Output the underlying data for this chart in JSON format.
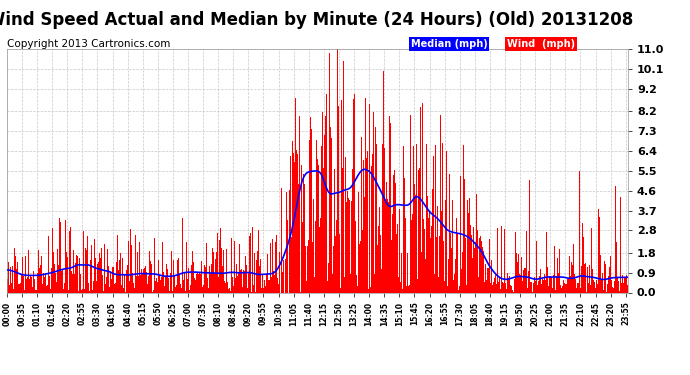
{
  "title": "Wind Speed Actual and Median by Minute (24 Hours) (Old) 20131208",
  "copyright": "Copyright 2013 Cartronics.com",
  "yticks": [
    0.0,
    0.9,
    1.8,
    2.8,
    3.7,
    4.6,
    5.5,
    6.4,
    7.3,
    8.2,
    9.2,
    10.1,
    11.0
  ],
  "ymin": 0.0,
  "ymax": 11.0,
  "bg_color": "#ffffff",
  "plot_bg_color": "#ffffff",
  "grid_color": "#c8c8c8",
  "wind_color": "#ff0000",
  "median_color": "#0000ff",
  "legend_median_bg": "#0000ff",
  "legend_wind_bg": "#ff0000",
  "title_fontsize": 12,
  "copyright_fontsize": 7.5
}
